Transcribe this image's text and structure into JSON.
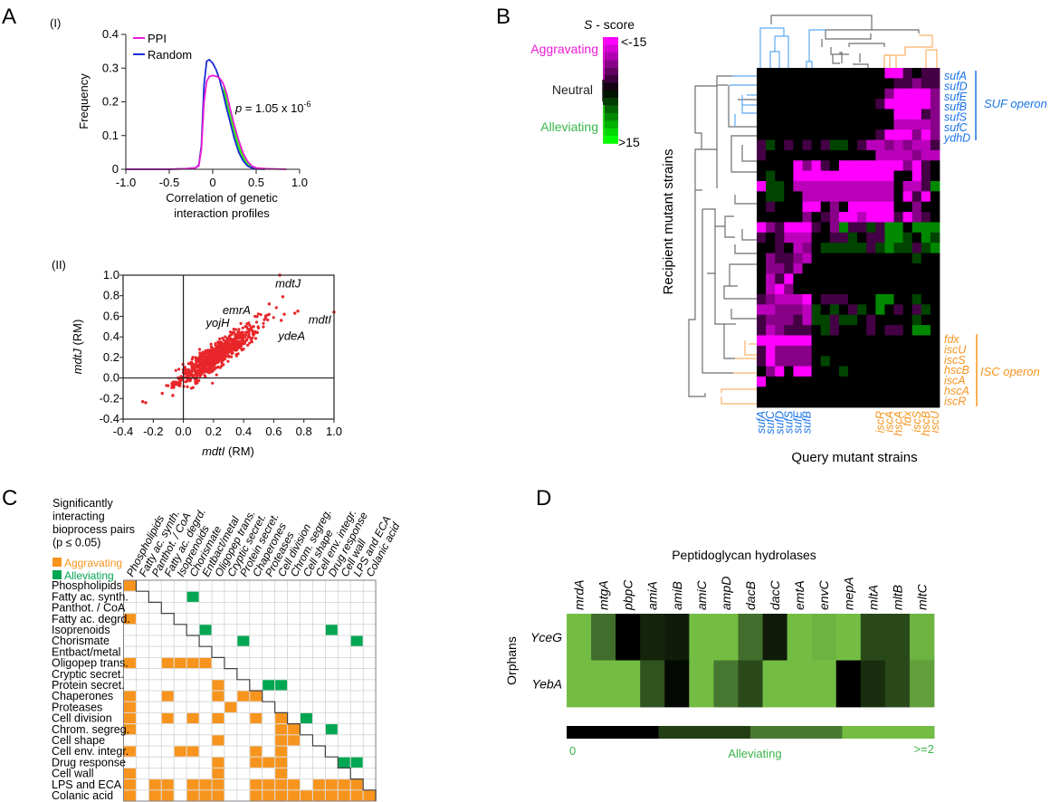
{
  "panel_labels": {
    "a": "A",
    "b": "B",
    "c": "C",
    "d": "D"
  },
  "chart_data": [
    {
      "id": "A-I",
      "type": "line",
      "sublabel": "(I)",
      "title": "",
      "xlabel": [
        "Correlation of genetic",
        "interaction profiles"
      ],
      "ylabel": "Frequency",
      "xlim": [
        -1.0,
        1.0
      ],
      "ylim": [
        0,
        0.4
      ],
      "xticks": [
        "-1.0",
        "-0.5",
        "0",
        "0.5",
        "1.0"
      ],
      "xtick_values": [
        -1.0,
        -0.5,
        0,
        0.5,
        1.0
      ],
      "yticks": [
        "0",
        "0.1",
        "0.2",
        "0.3",
        "0.4"
      ],
      "ytick_values": [
        0,
        0.1,
        0.2,
        0.3,
        0.4
      ],
      "legend": {
        "position": "top-left",
        "entries": [
          {
            "name": "PPI",
            "color": "#ec1cd6"
          },
          {
            "name": "Random",
            "color": "#1a2bd6"
          }
        ]
      },
      "annotation": {
        "text": "p = 1.05 x 10",
        "exponent": "-6",
        "italic_part": "p"
      },
      "fill_between_color": "#39e81f",
      "series": [
        {
          "name": "PPI",
          "color": "#ec1cd6",
          "x": [
            -1.0,
            -0.5,
            -0.3,
            -0.2,
            -0.16,
            -0.13,
            -0.1,
            -0.07,
            -0.04,
            0.0,
            0.04,
            0.08,
            0.12,
            0.16,
            0.2,
            0.25,
            0.3,
            0.35,
            0.4,
            0.45,
            0.5,
            0.6,
            0.7,
            0.85
          ],
          "y": [
            0,
            0,
            0.002,
            0.004,
            0.01,
            0.06,
            0.2,
            0.26,
            0.275,
            0.278,
            0.276,
            0.27,
            0.255,
            0.225,
            0.18,
            0.13,
            0.085,
            0.048,
            0.024,
            0.01,
            0.004,
            0.002,
            0.001,
            0
          ]
        },
        {
          "name": "Random",
          "color": "#1a2bd6",
          "x": [
            -1.0,
            -0.5,
            -0.3,
            -0.2,
            -0.16,
            -0.13,
            -0.1,
            -0.07,
            -0.04,
            0.0,
            0.04,
            0.08,
            0.12,
            0.16,
            0.2,
            0.25,
            0.3,
            0.35,
            0.4,
            0.45,
            0.5,
            0.6
          ],
          "y": [
            0,
            0,
            0.002,
            0.004,
            0.012,
            0.07,
            0.25,
            0.32,
            0.325,
            0.315,
            0.295,
            0.265,
            0.225,
            0.18,
            0.14,
            0.09,
            0.05,
            0.025,
            0.01,
            0.004,
            0.001,
            0
          ]
        }
      ]
    },
    {
      "id": "A-II",
      "type": "scatter",
      "sublabel": "(II)",
      "xlabel": {
        "gene": "mdtI",
        "suffix": " (RM)"
      },
      "ylabel": {
        "gene": "mdtJ",
        "suffix": " (RM)"
      },
      "xlim": [
        -0.4,
        1.0
      ],
      "ylim": [
        -0.4,
        1.0
      ],
      "xticks": [
        "-0.4",
        "-0.2",
        "0.0",
        "0.2",
        "0.4",
        "0.6",
        "0.8",
        "1.0"
      ],
      "xtick_values": [
        -0.4,
        -0.2,
        0.0,
        0.2,
        0.4,
        0.6,
        0.8,
        1.0
      ],
      "yticks": [
        "-0.4",
        "-0.2",
        "0.0",
        "0.2",
        "0.4",
        "0.6",
        "0.8",
        "1.0"
      ],
      "ytick_values": [
        -0.4,
        -0.2,
        0.0,
        0.2,
        0.4,
        0.6,
        0.8,
        1.0
      ],
      "point_color": "#e8262a",
      "annotations": [
        {
          "text": "mdtJ",
          "x": 0.61,
          "y": 0.88
        },
        {
          "text": "emrA",
          "x": 0.26,
          "y": 0.62
        },
        {
          "text": "yojH",
          "x": 0.15,
          "y": 0.5
        },
        {
          "text": "mdtI",
          "x": 0.83,
          "y": 0.53
        },
        {
          "text": "ydeA",
          "x": 0.63,
          "y": 0.37
        }
      ],
      "highlight_points": [
        [
          0.64,
          1.0
        ],
        [
          0.66,
          0.79
        ],
        [
          1.0,
          0.64
        ],
        [
          0.76,
          0.65
        ],
        [
          0.74,
          0.63
        ],
        [
          0.57,
          0.72
        ],
        [
          0.67,
          0.62
        ],
        [
          0.65,
          0.56
        ],
        [
          -0.27,
          -0.23
        ],
        [
          -0.25,
          -0.24
        ],
        [
          -0.14,
          -0.15
        ],
        [
          -0.07,
          -0.17
        ]
      ],
      "cloud": {
        "n": 900,
        "x_mean": 0.22,
        "x_sd": 0.12,
        "slope": 1.0,
        "intercept": 0.0,
        "noise_sd": 0.06,
        "seed": 7
      }
    },
    {
      "id": "B",
      "type": "heatmap",
      "colorbar": {
        "title_italic": "S",
        "title_rest": " - score",
        "min_label": "<-15",
        "max_label": ">15",
        "min": -15,
        "max": 15,
        "groups": [
          {
            "label": "Aggravating",
            "color": "#ec1cd6"
          },
          {
            "label": "Neutral",
            "color": "#231f20"
          },
          {
            "label": "Alleviating",
            "color": "#39b54a"
          }
        ]
      },
      "ylabel": "Recipient mutant strains",
      "xlabel": "Query mutant strains",
      "legend_codes": {
        "k": 0,
        "d": -4,
        "p": -8,
        "m": -11,
        "M": -15,
        "g": 4,
        "G": 8
      },
      "rows": [
        "kkkkkkkkkkkkkkMMdkdd",
        "kkkkkkkkkkkkkkkddpdd",
        "kkkkkkkkkkkkkkpMMMMp",
        "kkkkkkkkkkkkkdMMMMMp",
        "kkkkkkkkkkkkkkkMMMdp",
        "kkkkkkkkkkkkkkkmmmmp",
        "kkkkkkkkkkkkkdMMMpMp",
        "dgkdkdkdggkdmmpmpmmd",
        "dkkkkkkkkkkkkmmmmpmm",
        "kkkkMpMdkMMMMMMMpMdk",
        "kgkkMMMMMMMMMMMkkMdk",
        "MggkmmmmmmmmmmmkmmdG",
        "kggkkmmmmmmmmmmkMdMk",
        "kdkkkMMkpkMMMMMkkpkk",
        "kkkkkpkdpMMmMMMdMpdk",
        "MpdMMMdkpGddgdGGkGGG",
        "dkdmmmkkddgkddGGgkGg",
        "kkdkmpkgggggdgGggdgG",
        "kpddpmkkkkkkkkkkkgkk",
        "kppdmkkkkkkkkkkkkkkk",
        "kmdMkkkkkkkkkkkkkkkk",
        "kmMpkkkkkkkkkkkkkkkk",
        "dpmmmMkdddkkkGGkkgkk",
        "mmpppmgkgkdgkGkdkdgk",
        "dpppdmggdggkdkkkkgkk",
        "dmpdddkgdkkkdkddkGGk",
        "MMMMMMkkkkkkkkkkkkkk",
        "dMppppkkkkkkkkkkkkkk",
        "dMppppkgkkkkkkkkkkkk",
        "kpMkMMkkkgkkkkkkkkkk",
        "Mkkkkkkkkkkkkkkkkkkk",
        "kkkkkkkkkkkkkkkkkkkk",
        "kkkkkkkkkkkkkkkkkkkk"
      ],
      "row_labels_suf": [
        "sufA",
        "sufD",
        "sufE",
        "sufB",
        "sufS",
        "sufC",
        "ydhD"
      ],
      "row_group_suf": "SUF operon",
      "row_labels_isc": [
        "fdx",
        "iscU",
        "iscS",
        "hscB",
        "iscA",
        "hscA",
        "iscR"
      ],
      "row_group_isc": "ISC operon",
      "col_labels_suf": [
        "sufA",
        "sufC",
        "sufD",
        "sufS",
        "sufE",
        "sufB"
      ],
      "col_labels_isc": [
        "iscR",
        "iscA",
        "hscA",
        "fdx",
        "iscS",
        "hscB",
        "iscU"
      ],
      "suf_color": "#1a73e8",
      "isc_color": "#f7941d"
    },
    {
      "id": "C",
      "type": "table",
      "legend_title": [
        "Significantly",
        "interacting",
        "bioprocess pairs",
        "(p ≤ 0.05)"
      ],
      "legend": [
        {
          "label": "Aggravating",
          "color": "#f7941d"
        },
        {
          "label": "Alleviating",
          "color": "#00a651"
        }
      ],
      "categories": [
        "Phospholipids",
        "Fatty ac. synth.",
        "Panthot. / CoA",
        "Fatty ac. degrd.",
        "Isoprenoids",
        "Chorismate",
        "Entbact/metal",
        "Oligopep trans.",
        "Cryptic secret.",
        "Protein secret.",
        "Chaperones",
        "Proteases",
        "Cell division",
        "Chrom. segreg.",
        "Cell shape",
        "Cell env. integr.",
        "Drug response",
        "Cell wall",
        "LPS and ECA",
        "Colanic acid"
      ],
      "aggravating": [
        [
          0,
          0
        ],
        [
          3,
          0
        ],
        [
          7,
          0
        ],
        [
          7,
          3
        ],
        [
          7,
          4
        ],
        [
          7,
          5
        ],
        [
          7,
          6
        ],
        [
          9,
          7
        ],
        [
          10,
          0
        ],
        [
          10,
          3
        ],
        [
          10,
          7
        ],
        [
          10,
          9
        ],
        [
          10,
          10
        ],
        [
          11,
          0
        ],
        [
          11,
          8
        ],
        [
          12,
          0
        ],
        [
          12,
          3
        ],
        [
          12,
          5
        ],
        [
          12,
          7
        ],
        [
          12,
          10
        ],
        [
          12,
          12
        ],
        [
          13,
          0
        ],
        [
          13,
          12
        ],
        [
          13,
          13
        ],
        [
          14,
          7
        ],
        [
          14,
          12
        ],
        [
          14,
          13
        ],
        [
          15,
          0
        ],
        [
          15,
          4
        ],
        [
          15,
          5
        ],
        [
          15,
          10
        ],
        [
          15,
          12
        ],
        [
          16,
          7
        ],
        [
          16,
          10
        ],
        [
          16,
          11
        ],
        [
          16,
          12
        ],
        [
          17,
          0
        ],
        [
          17,
          7
        ],
        [
          17,
          12
        ],
        [
          18,
          0
        ],
        [
          18,
          2
        ],
        [
          18,
          3
        ],
        [
          18,
          5
        ],
        [
          18,
          6
        ],
        [
          18,
          7
        ],
        [
          18,
          10
        ],
        [
          18,
          11
        ],
        [
          18,
          12
        ],
        [
          18,
          13
        ],
        [
          18,
          15
        ],
        [
          18,
          16
        ],
        [
          18,
          17
        ],
        [
          18,
          18
        ],
        [
          19,
          0
        ],
        [
          19,
          2
        ],
        [
          19,
          3
        ],
        [
          19,
          5
        ],
        [
          19,
          6
        ],
        [
          19,
          7
        ],
        [
          19,
          10
        ],
        [
          19,
          11
        ],
        [
          19,
          12
        ],
        [
          19,
          13
        ],
        [
          19,
          14
        ],
        [
          19,
          15
        ],
        [
          19,
          16
        ],
        [
          19,
          17
        ],
        [
          19,
          18
        ],
        [
          19,
          19
        ]
      ],
      "alleviating": [
        [
          1,
          5
        ],
        [
          4,
          6
        ],
        [
          4,
          16
        ],
        [
          5,
          9
        ],
        [
          5,
          18
        ],
        [
          9,
          11
        ],
        [
          9,
          12
        ],
        [
          12,
          14
        ],
        [
          13,
          16
        ],
        [
          16,
          17
        ],
        [
          16,
          18
        ]
      ]
    },
    {
      "id": "D",
      "type": "heatmap",
      "title": "Peptidoglycan hydrolases",
      "ylabel": "Orphans",
      "columns": [
        "mrdA",
        "mtgA",
        "pbpC",
        "amiA",
        "amiB",
        "amiC",
        "ampD",
        "dacB",
        "dacC",
        "emtA",
        "envC",
        "mepA",
        "mltA",
        "mltB",
        "mltC"
      ],
      "rows": [
        {
          "name": "YceG",
          "values": [
            2,
            1.2,
            0,
            0.4,
            0.3,
            2,
            2,
            1.2,
            0.3,
            2,
            1.9,
            2,
            0.8,
            0.8,
            1.9
          ]
        },
        {
          "name": "YebA",
          "values": [
            2,
            2,
            2,
            0.9,
            0.1,
            2,
            1.3,
            0.8,
            2,
            2,
            2,
            0,
            0.5,
            0.8,
            1.7
          ]
        }
      ],
      "colorbar": {
        "min_label": "0",
        "max_label": ">=2",
        "center_label": "Alleviating",
        "min": 0,
        "max": 2,
        "steps": [
          "#000000",
          "#233d14",
          "#487a32",
          "#74bd44"
        ],
        "label_color": "#39b54a"
      }
    }
  ]
}
